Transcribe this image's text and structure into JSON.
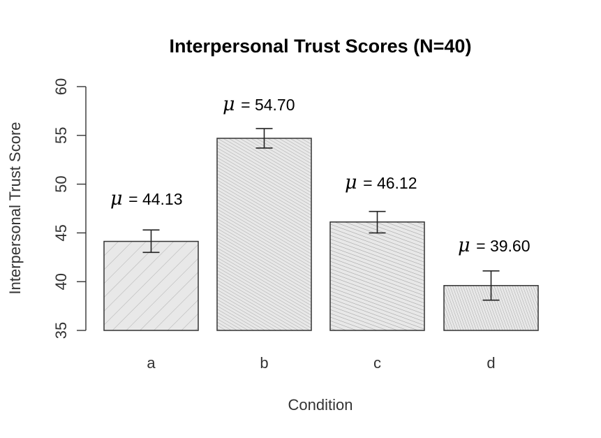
{
  "chart_data": {
    "type": "bar",
    "title": "Interpersonal Trust Scores (N=40)",
    "xlabel": "Condition",
    "ylabel": "Interpersonal Trust Score",
    "categories": [
      "a",
      "b",
      "c",
      "d"
    ],
    "values": [
      44.13,
      54.7,
      46.12,
      39.6
    ],
    "error_low": [
      43.0,
      53.7,
      45.0,
      38.1
    ],
    "error_high": [
      45.3,
      55.7,
      47.2,
      41.1
    ],
    "data_labels": [
      "44.13",
      "54.70",
      "46.12",
      "39.60"
    ],
    "label_symbol": "μ",
    "label_operator": "=",
    "ylim": [
      35,
      60
    ],
    "yticks": [
      35,
      40,
      45,
      50,
      55,
      60
    ],
    "grid": false,
    "legend": "none",
    "colors": {
      "bar_fill": "#e8e8e8",
      "bar_stroke": "#333333",
      "hatch": "#b0b0b0",
      "axis": "#333333"
    }
  }
}
